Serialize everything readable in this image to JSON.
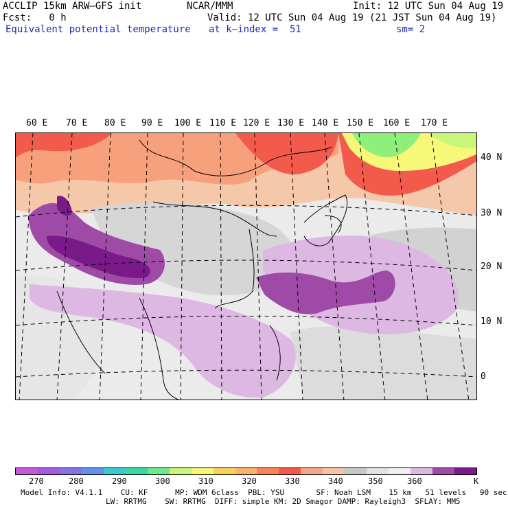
{
  "header": {
    "model_title": "ACCLIP 15km ARW–GFS init",
    "center": "NCAR/MMM",
    "init": "Init: 12 UTC Sun 04 Aug 19",
    "fcst": "Fcst:   0 h",
    "valid": "Valid: 12 UTC Sun 04 Aug 19 (21 JST Sun 04 Aug 19)",
    "field": "Equivalent potential temperature",
    "level": "at k–index =  51",
    "smoothing": "sm= 2"
  },
  "longitude_labels": [
    "60 E",
    "70 E",
    "80 E",
    "90 E",
    "100 E",
    "110 E",
    "120 E",
    "130 E",
    "140 E",
    "150 E",
    "160 E",
    "170 E"
  ],
  "latitude_labels": [
    "40 N",
    "30 N",
    "20 N",
    "10 N",
    "0"
  ],
  "colorbar": {
    "colors": [
      "#c35ad8",
      "#a25ce0",
      "#8374e6",
      "#6390ea",
      "#3cc8cc",
      "#3ed6a0",
      "#6ee88a",
      "#c8f57a",
      "#f7f77a",
      "#f8d25a",
      "#f7b46a",
      "#f88558",
      "#f25a4b",
      "#f4a78a",
      "#f6c4a8",
      "#c8c8c8",
      "#e2e2e2",
      "#f0f0f0",
      "#dcb8e2",
      "#a04aa8",
      "#7a1a8a"
    ],
    "tick_labels": [
      "270",
      "280",
      "290",
      "300",
      "310",
      "320",
      "330",
      "340",
      "350",
      "360"
    ],
    "unit": "K"
  },
  "footer": {
    "line1": "Model Info: V4.1.1    CU: KF      MP: WDM 6class  PBL: YSU       SF: Noah LSM    15 km   51 levels   90 sec",
    "line2": "LW: RRTMG    SW: RRTMG  DIFF: simple KM: 2D Smagor DAMP: Rayleigh3  SFLAY: MM5"
  },
  "map_style": {
    "background": "#ebebeb",
    "ocean_grey": "#d2d2d2",
    "purple_dark": "#7a1a8a",
    "purple_mid": "#a04aa8",
    "purple_light": "#dcb8e2",
    "red": "#f25a4b",
    "salmon": "#f7a07c",
    "peach": "#f6c8aa",
    "yellow": "#f7f77a",
    "green": "#8ef07a"
  }
}
